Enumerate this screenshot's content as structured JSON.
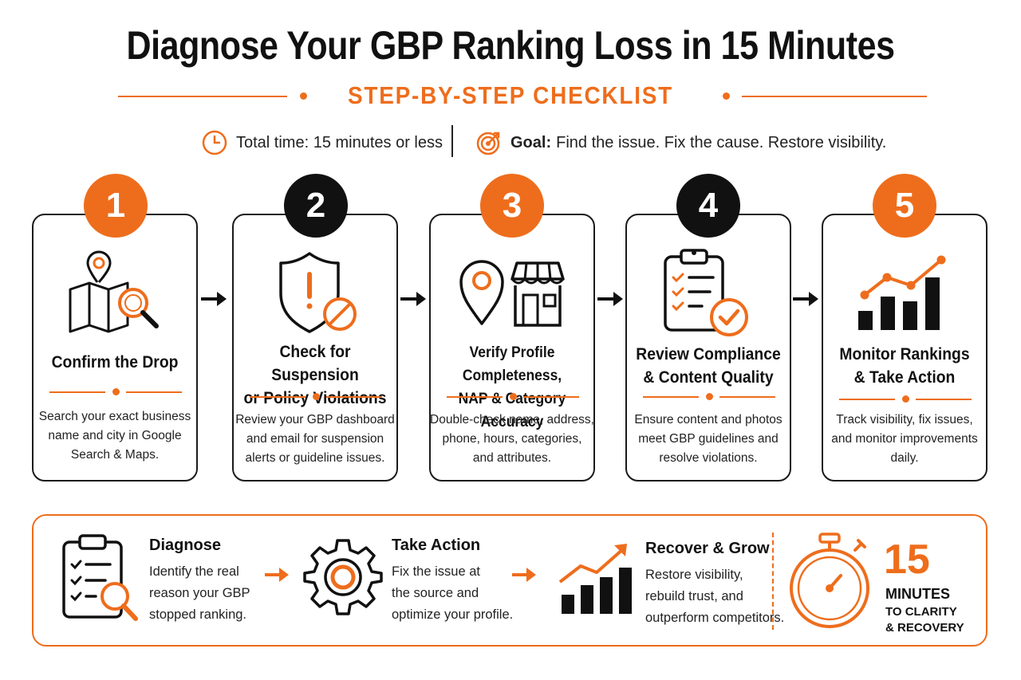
{
  "title": "Diagnose Your GBP Ranking Loss in 15 Minutes",
  "subtitle": "STEP-BY-STEP CHECKLIST",
  "meta": {
    "time_text": "Total time: 15 minutes or less",
    "goal_label": "Goal:",
    "goal_text": "Find the issue. Fix the cause. Restore visibility.",
    "icons": [
      "clock-icon",
      "target-icon"
    ]
  },
  "colors": {
    "accent": "#ee6d1c",
    "dark": "#111111"
  },
  "steps": [
    {
      "number": "1",
      "title_line1": "Confirm the Drop",
      "title_line2": "",
      "desc": [
        "Search your exact business",
        "name and city in Google",
        "Search & Maps."
      ],
      "icon": "map-search-icon"
    },
    {
      "number": "2",
      "title_line1": "Check for Suspension",
      "title_line2": "or Policy Violations",
      "desc": [
        "Review your GBP dashboard",
        "and email for suspension",
        "alerts or guideline issues."
      ],
      "icon": "shield-warning-icon"
    },
    {
      "number": "3",
      "title_line1": "Verify Profile Completeness,",
      "title_line2": "NAP & Category Accuracy",
      "desc": [
        "Double-check name, address,",
        "phone, hours, categories,",
        "and attributes."
      ],
      "icon": "location-store-icon"
    },
    {
      "number": "4",
      "title_line1": "Review Compliance",
      "title_line2": "& Content Quality",
      "desc": [
        "Ensure content and photos",
        "meet GBP guidelines and",
        "resolve violations."
      ],
      "icon": "clipboard-check-icon"
    },
    {
      "number": "5",
      "title_line1": "Monitor Rankings",
      "title_line2": "& Take Action",
      "desc": [
        "Track visibility, fix issues,",
        "and monitor improvements",
        "daily."
      ],
      "icon": "trend-chart-icon"
    }
  ],
  "bottom": {
    "items": [
      {
        "heading": "Diagnose",
        "lines": [
          "Identify the real",
          "reason your GBP",
          "stopped ranking."
        ],
        "icon": "checklist-search-icon"
      },
      {
        "heading": "Take Action",
        "lines": [
          "Fix the issue at",
          "the source and",
          "optimize your profile."
        ],
        "icon": "gear-icon"
      },
      {
        "heading": "Recover & Grow",
        "lines": [
          "Restore visibility,",
          "rebuild trust, and",
          "outperform competitors."
        ],
        "icon": "growth-chart-icon"
      }
    ],
    "timer": {
      "number": "15",
      "unit": "MINUTES",
      "caption_line1": "TO CLARITY",
      "caption_line2": "& RECOVERY",
      "icon": "stopwatch-icon"
    }
  }
}
